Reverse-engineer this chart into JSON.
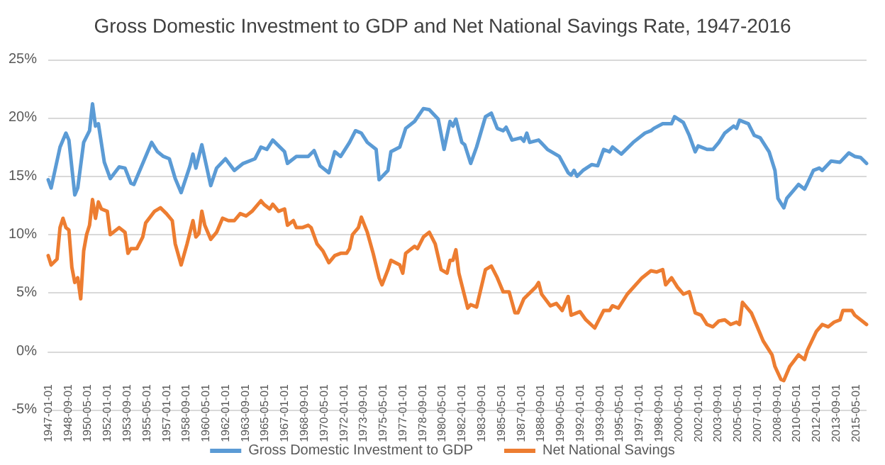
{
  "chart_data": {
    "type": "line",
    "title": "Gross Domestic Investment to GDP and Net National Savings Rate, 1947-2016",
    "xlim": [
      "1947-01",
      "2016-04"
    ],
    "xticks": [
      "1947-01-01",
      "1948-09-01",
      "1950-05-01",
      "1952-01-01",
      "1953-09-01",
      "1955-05-01",
      "1957-01-01",
      "1958-09-01",
      "1960-05-01",
      "1962-01-01",
      "1963-09-01",
      "1965-05-01",
      "1967-01-01",
      "1968-09-01",
      "1970-05-01",
      "1972-01-01",
      "1973-09-01",
      "1975-05-01",
      "1977-01-01",
      "1978-09-01",
      "1980-05-01",
      "1982-01-01",
      "1983-09-01",
      "1985-05-01",
      "1987-01-01",
      "1988-09-01",
      "1990-05-01",
      "1992-01-01",
      "1993-09-01",
      "1995-05-01",
      "1997-01-01",
      "1998-09-01",
      "2000-05-01",
      "2002-01-01",
      "2003-09-01",
      "2005-05-01",
      "2007-01-01",
      "2008-09-01",
      "2010-05-01",
      "2012-01-01",
      "2013-09-01",
      "2015-05-01"
    ],
    "ylim": [
      -5,
      25
    ],
    "yticks": [
      {
        "value": -5,
        "label": "-5%"
      },
      {
        "value": 0,
        "label": "0%"
      },
      {
        "value": 5,
        "label": "5%"
      },
      {
        "value": 10,
        "label": "10%"
      },
      {
        "value": 15,
        "label": "15%"
      },
      {
        "value": 20,
        "label": "20%"
      },
      {
        "value": 25,
        "label": "25%"
      }
    ],
    "grid": "y",
    "legend": "bottom",
    "marker": "none",
    "line_style": "solid",
    "series": [
      {
        "name": "Gross Domestic Investment to GDP",
        "color": "#5b9bd5",
        "x": [
          "1947-01",
          "1947-04",
          "1948-01",
          "1948-07",
          "1948-10",
          "1949-04",
          "1949-07",
          "1950-01",
          "1950-07",
          "1950-10",
          "1951-01",
          "1951-04",
          "1951-10",
          "1952-04",
          "1953-01",
          "1953-07",
          "1954-01",
          "1954-04",
          "1955-01",
          "1955-10",
          "1956-04",
          "1956-10",
          "1957-04",
          "1957-10",
          "1958-04",
          "1959-01",
          "1959-04",
          "1959-07",
          "1960-01",
          "1960-10",
          "1961-04",
          "1962-01",
          "1962-10",
          "1963-07",
          "1964-07",
          "1965-01",
          "1965-07",
          "1966-01",
          "1967-01",
          "1967-04",
          "1968-01",
          "1969-01",
          "1969-07",
          "1970-01",
          "1970-10",
          "1971-04",
          "1971-10",
          "1972-07",
          "1973-01",
          "1973-07",
          "1974-01",
          "1974-10",
          "1975-01",
          "1975-10",
          "1976-01",
          "1976-10",
          "1977-04",
          "1978-01",
          "1978-10",
          "1979-04",
          "1980-01",
          "1980-07",
          "1981-01",
          "1981-04",
          "1981-07",
          "1982-01",
          "1982-04",
          "1982-10",
          "1983-04",
          "1984-01",
          "1984-07",
          "1985-01",
          "1985-07",
          "1985-10",
          "1986-04",
          "1987-01",
          "1987-04",
          "1987-07",
          "1987-10",
          "1988-07",
          "1989-04",
          "1990-04",
          "1991-01",
          "1991-04",
          "1991-07",
          "1991-10",
          "1992-04",
          "1993-01",
          "1993-07",
          "1994-01",
          "1994-07",
          "1994-10",
          "1995-07",
          "1996-07",
          "1997-07",
          "1998-01",
          "1998-04",
          "1999-01",
          "1999-10",
          "2000-01",
          "2000-10",
          "2001-04",
          "2001-10",
          "2002-01",
          "2002-10",
          "2003-04",
          "2003-10",
          "2004-04",
          "2005-01",
          "2005-04",
          "2005-07",
          "2006-04",
          "2006-10",
          "2007-04",
          "2008-01",
          "2008-07",
          "2008-10",
          "2009-04",
          "2009-07",
          "2010-04",
          "2010-07",
          "2011-01",
          "2011-04",
          "2011-10",
          "2012-04",
          "2012-07",
          "2013-04",
          "2014-01",
          "2014-10",
          "2015-04",
          "2015-10",
          "2016-04"
        ],
        "values": [
          14.7,
          14.0,
          17.5,
          18.7,
          18.1,
          13.4,
          14.0,
          17.9,
          18.9,
          21.2,
          19.3,
          19.5,
          16.2,
          14.8,
          15.8,
          15.7,
          14.4,
          14.3,
          16.1,
          17.9,
          17.1,
          16.7,
          16.5,
          14.8,
          13.6,
          15.9,
          16.9,
          15.7,
          17.7,
          14.2,
          15.7,
          16.5,
          15.5,
          16.1,
          16.5,
          17.5,
          17.3,
          18.1,
          17.1,
          16.1,
          16.7,
          16.7,
          17.2,
          15.9,
          15.3,
          17.1,
          16.7,
          17.9,
          18.9,
          18.7,
          17.9,
          17.3,
          14.7,
          15.5,
          17.1,
          17.5,
          19.1,
          19.7,
          20.8,
          20.7,
          19.9,
          17.3,
          19.7,
          19.3,
          19.9,
          17.9,
          17.7,
          16.1,
          17.5,
          20.1,
          20.4,
          19.1,
          18.9,
          19.2,
          18.1,
          18.3,
          18.0,
          18.7,
          17.9,
          18.1,
          17.3,
          16.7,
          15.3,
          15.1,
          15.5,
          15.0,
          15.5,
          16.0,
          15.9,
          17.3,
          17.1,
          17.5,
          16.9,
          17.9,
          18.7,
          18.9,
          19.1,
          19.5,
          19.5,
          20.1,
          19.6,
          18.5,
          17.1,
          17.6,
          17.3,
          17.3,
          17.9,
          18.7,
          19.3,
          19.1,
          19.8,
          19.5,
          18.5,
          18.3,
          17.1,
          15.5,
          13.1,
          12.3,
          13.1,
          14.0,
          14.3,
          13.9,
          14.4,
          15.5,
          15.7,
          15.5,
          16.3,
          16.2,
          17.0,
          16.7,
          16.6,
          16.1
        ]
      },
      {
        "name": "Net National Savings",
        "color": "#ed7d31",
        "x": [
          "1947-01",
          "1947-04",
          "1947-10",
          "1948-01",
          "1948-04",
          "1948-07",
          "1948-10",
          "1949-01",
          "1949-04",
          "1949-07",
          "1949-10",
          "1950-01",
          "1950-04",
          "1950-07",
          "1950-10",
          "1951-01",
          "1951-04",
          "1951-07",
          "1952-01",
          "1952-04",
          "1953-01",
          "1953-07",
          "1953-10",
          "1954-01",
          "1954-07",
          "1955-01",
          "1955-04",
          "1956-01",
          "1956-07",
          "1957-01",
          "1957-07",
          "1957-10",
          "1958-04",
          "1958-10",
          "1959-04",
          "1959-07",
          "1959-10",
          "1960-01",
          "1960-04",
          "1960-10",
          "1961-04",
          "1961-10",
          "1962-04",
          "1962-10",
          "1963-04",
          "1963-10",
          "1964-04",
          "1965-01",
          "1965-04",
          "1965-10",
          "1966-01",
          "1966-07",
          "1967-01",
          "1967-04",
          "1967-10",
          "1968-01",
          "1968-07",
          "1969-01",
          "1969-04",
          "1969-10",
          "1970-04",
          "1970-10",
          "1971-04",
          "1971-10",
          "1972-04",
          "1972-07",
          "1972-10",
          "1973-04",
          "1973-07",
          "1974-01",
          "1974-07",
          "1975-01",
          "1975-04",
          "1975-10",
          "1976-01",
          "1976-10",
          "1977-01",
          "1977-04",
          "1978-01",
          "1978-04",
          "1978-10",
          "1979-04",
          "1979-10",
          "1980-04",
          "1980-10",
          "1981-01",
          "1981-04",
          "1981-07",
          "1981-10",
          "1982-07",
          "1982-10",
          "1983-04",
          "1984-01",
          "1984-07",
          "1985-01",
          "1985-07",
          "1986-01",
          "1986-07",
          "1986-10",
          "1987-04",
          "1988-04",
          "1988-07",
          "1988-10",
          "1989-07",
          "1990-01",
          "1990-07",
          "1991-01",
          "1991-04",
          "1992-01",
          "1992-07",
          "1993-04",
          "1994-01",
          "1994-07",
          "1994-10",
          "1995-04",
          "1996-01",
          "1997-04",
          "1998-01",
          "1998-07",
          "1999-01",
          "1999-04",
          "1999-10",
          "2000-04",
          "2000-10",
          "2001-04",
          "2001-10",
          "2002-04",
          "2002-10",
          "2003-04",
          "2003-10",
          "2004-04",
          "2004-10",
          "2005-04",
          "2005-07",
          "2005-10",
          "2006-07",
          "2007-01",
          "2007-07",
          "2008-04",
          "2008-07",
          "2009-01",
          "2009-04",
          "2009-10",
          "2010-07",
          "2011-01",
          "2011-04",
          "2012-01",
          "2012-07",
          "2013-01",
          "2013-07",
          "2014-01",
          "2014-04",
          "2015-01",
          "2015-04",
          "2016-04"
        ],
        "values": [
          8.2,
          7.4,
          7.9,
          10.6,
          11.4,
          10.6,
          10.4,
          7.2,
          5.9,
          6.3,
          4.5,
          8.6,
          10.0,
          10.8,
          13.0,
          11.4,
          12.8,
          12.2,
          12.0,
          10.0,
          10.6,
          10.2,
          8.4,
          8.8,
          8.8,
          9.8,
          11.0,
          12.0,
          12.3,
          11.8,
          11.2,
          9.2,
          7.4,
          9.2,
          11.2,
          9.8,
          10.1,
          12.0,
          10.8,
          9.6,
          10.2,
          11.4,
          11.2,
          11.2,
          11.8,
          11.6,
          12.0,
          12.9,
          12.6,
          12.2,
          12.6,
          12.0,
          12.2,
          10.8,
          11.2,
          10.6,
          10.6,
          10.8,
          10.6,
          9.2,
          8.6,
          7.6,
          8.2,
          8.4,
          8.4,
          8.8,
          10.0,
          10.6,
          11.5,
          10.2,
          8.4,
          6.3,
          5.7,
          7.0,
          7.8,
          7.4,
          6.7,
          8.4,
          9.0,
          8.8,
          9.8,
          10.2,
          9.2,
          7.0,
          6.7,
          7.8,
          7.8,
          8.7,
          6.7,
          3.7,
          4.0,
          3.8,
          7.0,
          7.3,
          6.3,
          5.1,
          5.1,
          3.3,
          3.3,
          4.5,
          5.5,
          5.9,
          4.9,
          3.9,
          4.1,
          3.5,
          4.7,
          3.1,
          3.4,
          2.7,
          2.0,
          3.5,
          3.5,
          3.9,
          3.7,
          4.9,
          6.3,
          6.9,
          6.8,
          7.0,
          5.7,
          6.3,
          5.5,
          4.9,
          5.1,
          3.3,
          3.1,
          2.3,
          2.1,
          2.6,
          2.7,
          2.3,
          2.5,
          2.3,
          4.2,
          3.3,
          2.1,
          0.9,
          -0.3,
          -1.3,
          -2.4,
          -2.5,
          -1.3,
          -0.3,
          -0.7,
          0.1,
          1.7,
          2.3,
          2.1,
          2.5,
          2.7,
          3.5,
          3.5,
          3.1,
          2.3
        ]
      }
    ]
  }
}
